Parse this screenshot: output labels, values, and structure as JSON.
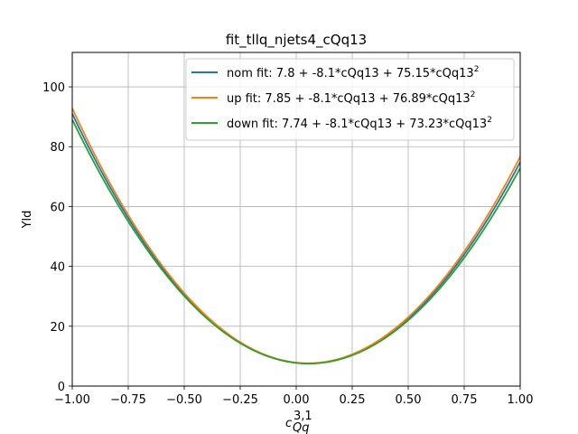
{
  "chart_data": {
    "type": "line",
    "title": "fit_tllq_njets4_cQq13",
    "xlabel": "c",
    "xlabel_sup": "3,1",
    "xlabel_sub": "Qq",
    "ylabel": "Yld",
    "xlim": [
      -1.0,
      1.0
    ],
    "ylim": [
      0,
      111.5
    ],
    "xticks": [
      -1.0,
      -0.75,
      -0.5,
      -0.25,
      0.0,
      0.25,
      0.5,
      0.75,
      1.0
    ],
    "xtick_labels": [
      "−1.00",
      "−0.75",
      "−0.50",
      "−0.25",
      "0.00",
      "0.25",
      "0.50",
      "0.75",
      "1.00"
    ],
    "yticks": [
      0,
      20,
      40,
      60,
      80,
      100
    ],
    "ytick_labels": [
      "0",
      "20",
      "40",
      "60",
      "80",
      "100"
    ],
    "grid": true,
    "legend_position": "top-right",
    "series": [
      {
        "name": "nom fit: 7.8 + -8.1*cQq13 + 75.15*cQq13",
        "name_sup": "2",
        "color": "#1f77b4",
        "coefficients": [
          7.8,
          -8.1,
          75.15
        ]
      },
      {
        "name": "up fit: 7.85 + -8.1*cQq13 + 76.89*cQq13",
        "name_sup": "2",
        "color": "#ff7f0e",
        "coefficients": [
          7.85,
          -8.1,
          76.89
        ]
      },
      {
        "name": "down fit: 7.74 + -8.1*cQq13 + 73.23*cQq13",
        "name_sup": "2",
        "color": "#2ca02c",
        "coefficients": [
          7.74,
          -8.1,
          73.23
        ]
      }
    ]
  }
}
